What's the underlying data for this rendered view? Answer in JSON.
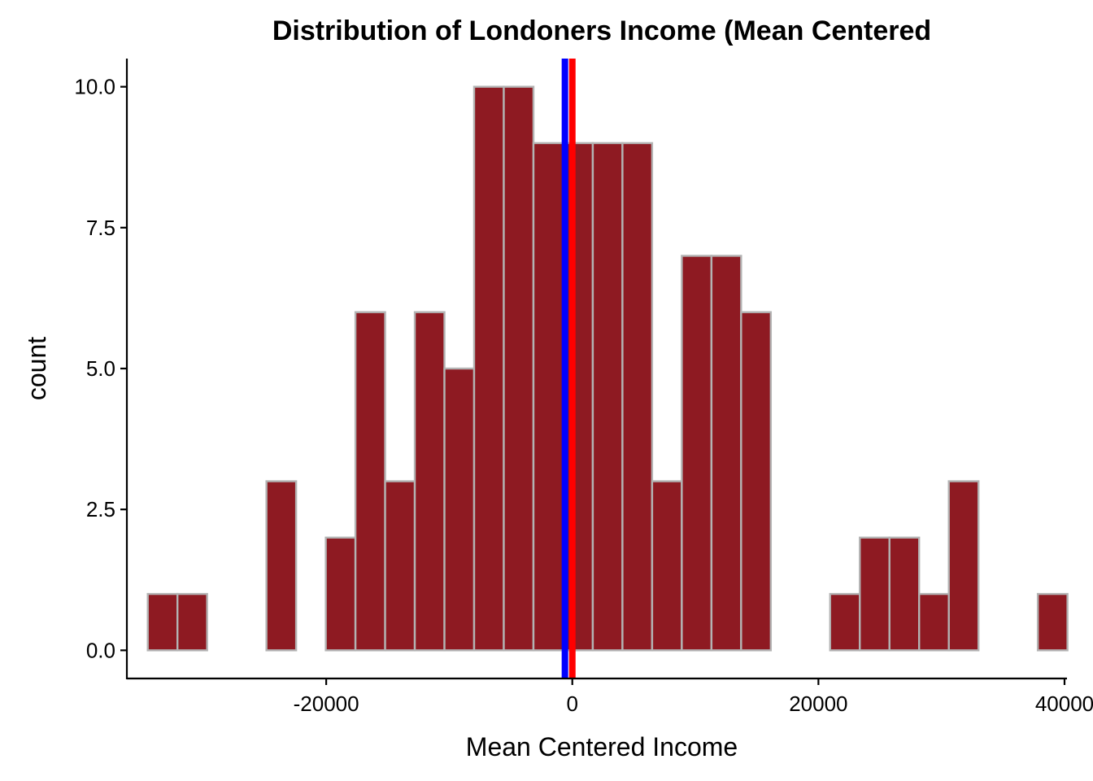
{
  "chart_data": {
    "type": "bar",
    "title": "Distribution of Londoners  Income (Mean Centered",
    "xlabel": "Mean Centered Income",
    "ylabel": "count",
    "xlim": [
      -36200,
      40200
    ],
    "ylim": [
      -0.5,
      10.5
    ],
    "x_ticks": [
      -20000,
      0,
      20000,
      40000
    ],
    "x_tick_labels": [
      "-20000",
      "0",
      "20000",
      "40000"
    ],
    "y_ticks": [
      0,
      2.5,
      5,
      7.5,
      10
    ],
    "y_tick_labels": [
      "0.0",
      "2.5",
      "5.0",
      "7.5",
      "10.0"
    ],
    "bin_start": -34500,
    "bin_width": 2411,
    "counts": [
      1,
      1,
      0,
      0,
      3,
      0,
      2,
      6,
      3,
      6,
      5,
      10,
      10,
      9,
      9,
      9,
      9,
      3,
      7,
      7,
      6,
      0,
      0,
      1,
      2,
      2,
      1,
      3,
      0,
      0,
      1
    ],
    "bar_fill": "#8e1a22",
    "bar_outline": "#b3b3b3",
    "vlines": [
      {
        "x": -600,
        "color": "#0000ff"
      },
      {
        "x": 0,
        "color": "#ff0000"
      }
    ],
    "grid": false,
    "legend": "none"
  }
}
